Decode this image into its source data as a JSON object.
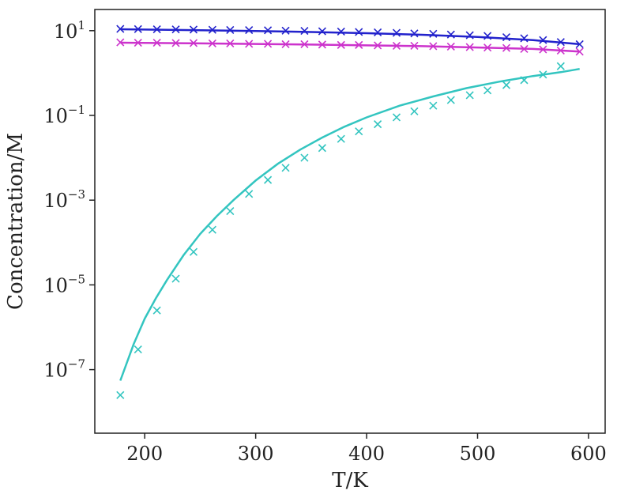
{
  "chart_data": {
    "type": "line",
    "xlabel": "T/K",
    "ylabel": "Concentration/M",
    "xlim": [
      155,
      615
    ],
    "ylim_log10": [
      -8.5,
      1.5
    ],
    "y_scale": "log",
    "grid": false,
    "x_ticks": [
      {
        "value": 200,
        "label": "200"
      },
      {
        "value": 300,
        "label": "300"
      },
      {
        "value": 400,
        "label": "400"
      },
      {
        "value": 500,
        "label": "500"
      },
      {
        "value": 600,
        "label": "600"
      }
    ],
    "y_ticks": [
      {
        "value": 1,
        "base": "10",
        "exp": "1"
      },
      {
        "value": -1,
        "base": "10",
        "exp": "−1"
      },
      {
        "value": -3,
        "base": "10",
        "exp": "−3"
      },
      {
        "value": -5,
        "base": "10",
        "exp": "−5"
      },
      {
        "value": -7,
        "base": "10",
        "exp": "−7"
      }
    ],
    "series": [
      {
        "color": "#2222cc",
        "curve_x": [
          178,
          200,
          250,
          300,
          350,
          400,
          450,
          500,
          550,
          592
        ],
        "curve_y": [
          10.8,
          10.6,
          10.2,
          9.8,
          9.3,
          8.7,
          8.0,
          7.1,
          6.0,
          4.8
        ],
        "points_x": [
          178,
          194,
          211,
          228,
          244,
          261,
          277,
          294,
          311,
          327,
          344,
          360,
          377,
          393,
          410,
          427,
          443,
          460,
          476,
          493,
          509,
          526,
          542,
          559,
          575,
          592
        ],
        "points_y": [
          11.0,
          10.9,
          10.8,
          10.7,
          10.6,
          10.5,
          10.4,
          10.3,
          10.2,
          10.0,
          9.9,
          9.7,
          9.5,
          9.3,
          9.1,
          8.9,
          8.6,
          8.4,
          8.1,
          7.8,
          7.5,
          7.0,
          6.6,
          6.0,
          5.4,
          4.8
        ]
      },
      {
        "color": "#cc33cc",
        "curve_x": [
          178,
          250,
          350,
          450,
          550,
          592
        ],
        "curve_y": [
          5.2,
          5.0,
          4.7,
          4.3,
          3.7,
          3.2
        ],
        "points_x": [
          178,
          194,
          211,
          228,
          244,
          261,
          277,
          294,
          311,
          327,
          344,
          360,
          377,
          393,
          410,
          427,
          443,
          460,
          476,
          493,
          509,
          526,
          542,
          559,
          575,
          592
        ],
        "points_y": [
          5.3,
          5.2,
          5.2,
          5.1,
          5.1,
          5.0,
          5.0,
          4.9,
          4.9,
          4.8,
          4.8,
          4.7,
          4.6,
          4.6,
          4.5,
          4.4,
          4.4,
          4.3,
          4.2,
          4.1,
          4.0,
          3.9,
          3.7,
          3.6,
          3.4,
          3.2
        ]
      },
      {
        "color": "#33c5c0",
        "curve_x": [
          178,
          190,
          200,
          210,
          220,
          235,
          250,
          265,
          280,
          300,
          320,
          340,
          360,
          380,
          400,
          430,
          460,
          490,
          520,
          550,
          575,
          592
        ],
        "curve_y": [
          5.5e-08,
          4e-07,
          1.6e-06,
          4.8e-06,
          1.3e-05,
          5e-05,
          0.00016,
          0.00042,
          0.001,
          0.0029,
          0.0072,
          0.0155,
          0.03,
          0.054,
          0.09,
          0.17,
          0.28,
          0.44,
          0.63,
          0.85,
          1.05,
          1.25
        ],
        "points_x": [
          178,
          194,
          211,
          228,
          244,
          261,
          277,
          294,
          311,
          327,
          344,
          360,
          377,
          393,
          410,
          427,
          443,
          460,
          476,
          493,
          509,
          526,
          542,
          559,
          575
        ],
        "points_y": [
          2.5e-08,
          3e-07,
          2.5e-06,
          1.4e-05,
          6e-05,
          0.0002,
          0.00055,
          0.0014,
          0.003,
          0.0058,
          0.01,
          0.017,
          0.028,
          0.042,
          0.062,
          0.09,
          0.125,
          0.17,
          0.23,
          0.3,
          0.39,
          0.52,
          0.68,
          0.92,
          1.45
        ]
      }
    ]
  }
}
